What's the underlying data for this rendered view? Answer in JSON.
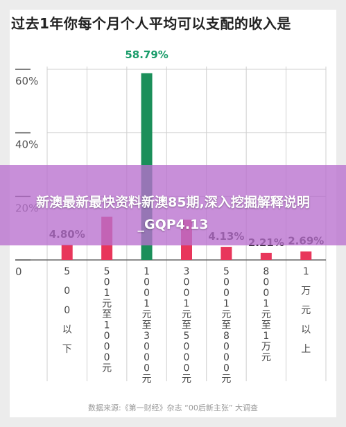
{
  "title": "过去1年你每个月个人平均可以支配的收入是",
  "banner": "新澳最新最快资料新澳85期,深入挖掘解释说明_GQP4.13",
  "source": "数据来源:《第一财经》杂志 “00后新主张” 大调查",
  "colors": {
    "bar": "#e8365b",
    "highlight": "#1b8f5a",
    "grid": "#cfcfcf"
  },
  "chart_data": {
    "type": "bar",
    "categories": [
      "500以下",
      "501元至1000元",
      "1001元至3000元",
      "3001元至5000元",
      "5001元至8000元",
      "8001元至1万元",
      "1万元以上"
    ],
    "values": [
      4.8,
      13.6,
      58.79,
      12.7,
      4.13,
      2.21,
      2.69
    ],
    "value_labels": [
      "4.80%",
      "",
      "58.79%",
      "",
      "4.13%",
      "2.21%",
      "2.69%"
    ],
    "highlight_index": 2,
    "ylim": [
      0,
      60
    ],
    "yticks": [
      "0",
      "20%",
      "40%",
      "60%"
    ],
    "ytick_values": [
      0,
      20,
      40,
      60
    ],
    "grid": true
  }
}
